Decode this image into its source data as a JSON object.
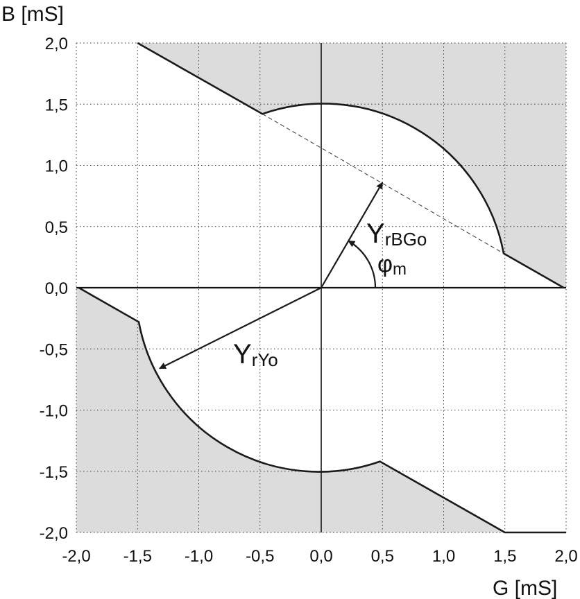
{
  "chart_data": {
    "type": "line",
    "xlabel": "G [mS]",
    "ylabel": "B [mS]",
    "xlim": [
      -2.0,
      2.0
    ],
    "ylim": [
      -2.0,
      2.0
    ],
    "grid": true,
    "x_ticks": [
      -2.0,
      -1.5,
      -1.0,
      -0.5,
      0.0,
      0.5,
      1.0,
      1.5,
      2.0
    ],
    "y_ticks": [
      -2.0,
      -1.5,
      -1.0,
      -0.5,
      0.0,
      0.5,
      1.0,
      1.5,
      2.0
    ],
    "x_tick_labels": [
      "-2,0",
      "-1,5",
      "-1,0",
      "-0,5",
      "0,0",
      "0,5",
      "1,0",
      "1,5",
      "2,0"
    ],
    "y_tick_labels": [
      "-2,0",
      "-1,5",
      "-1,0",
      "-0,5",
      "0,0",
      "0,5",
      "1,0",
      "1,5",
      "2,0"
    ],
    "circle_radius": 1.5,
    "boundary_upper": {
      "line_start": [
        -1.5,
        2.0
      ],
      "line_end": [
        -0.48,
        1.42
      ],
      "arc_end": [
        1.49,
        0.28
      ],
      "line_tail_end": [
        1.98,
        0.0
      ]
    },
    "boundary_lower": {
      "line_start": [
        -1.98,
        0.0
      ],
      "line_end": [
        -1.49,
        -0.28
      ],
      "arc_end": [
        0.48,
        -1.42
      ],
      "line_tail_end": [
        1.5,
        -2.0
      ],
      "flat_end": [
        2.0,
        -2.0
      ]
    },
    "dashed_line": {
      "from": [
        -0.48,
        1.42
      ],
      "to": [
        1.49,
        0.28
      ]
    },
    "vectors": [
      {
        "id": "YrBGo",
        "label_main": "Y",
        "label_sub": "rBGo",
        "tip": [
          0.5,
          0.86
        ]
      },
      {
        "id": "YrYo",
        "label_main": "Y",
        "label_sub": "rYo",
        "tip": [
          -1.32,
          -0.66
        ]
      }
    ],
    "angle_label": {
      "main": "φ",
      "sub": "m"
    },
    "shade_color": "#dcdcdc",
    "line_color": "#1a1a1a"
  }
}
